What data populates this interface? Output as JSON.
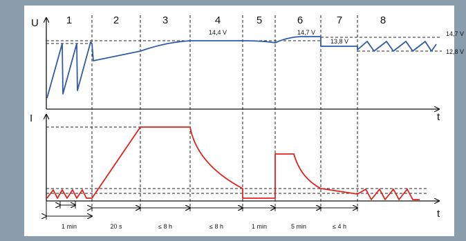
{
  "axes": {
    "top_y_label": "U",
    "top_x_label": "t",
    "bottom_y_label": "I",
    "bottom_x_label": "t"
  },
  "phases": [
    "1",
    "2",
    "3",
    "4",
    "5",
    "6",
    "7",
    "8"
  ],
  "voltage_labels": {
    "v144": "14,4 V",
    "v147_mid": "14,7 V",
    "v138": "13,8 V",
    "v147_right": "14,7 V",
    "v128_right": "12,8 V"
  },
  "durations": [
    "1 min",
    "20 s",
    "≤ 8 h",
    "≤ 8 h",
    "1 min",
    "5 min",
    "≤ 4 h"
  ],
  "colors": {
    "voltage_curve": "#2e5aa8",
    "current_curve": "#e0201b",
    "background": "#8a9dac",
    "panel": "#ffffff"
  }
}
